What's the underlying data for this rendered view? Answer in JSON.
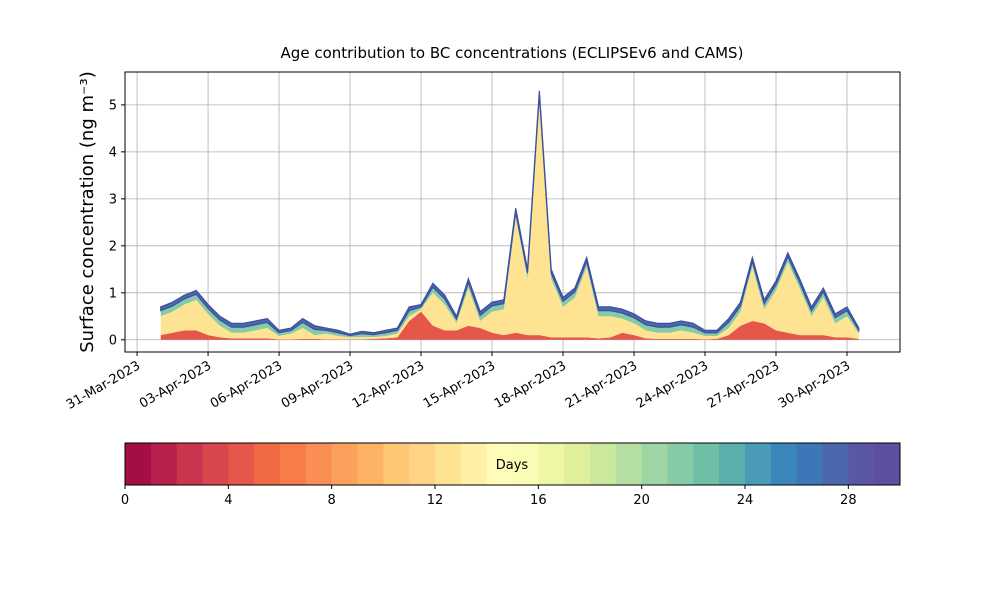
{
  "chart_data": {
    "type": "stackedarea",
    "title": "Age contribution to BC concentrations (ECLIPSEv6 and CAMS)",
    "ylabel": "Surface concentration (ng m⁻³)",
    "x": [
      1.0,
      1.5,
      2.0,
      2.5,
      3.0,
      3.5,
      4.0,
      4.5,
      5.0,
      5.5,
      6.0,
      6.5,
      7.0,
      7.5,
      8.0,
      8.5,
      9.0,
      9.5,
      10.0,
      10.5,
      11.0,
      11.5,
      12.0,
      12.5,
      13.0,
      13.5,
      14.0,
      14.5,
      15.0,
      15.5,
      16.0,
      16.5,
      17.0,
      17.5,
      18.0,
      18.5,
      19.0,
      19.5,
      20.0,
      20.5,
      21.0,
      21.5,
      22.0,
      22.5,
      23.0,
      23.5,
      24.0,
      24.5,
      25.0,
      25.5,
      26.0,
      26.5,
      27.0,
      27.5,
      28.0,
      28.5,
      29.0,
      29.5,
      30.0,
      30.5
    ],
    "series": [
      {
        "color": "#e55748",
        "values": [
          0.1,
          0.15,
          0.2,
          0.2,
          0.1,
          0.05,
          0.03,
          0.03,
          0.03,
          0.03,
          0.01,
          0.01,
          0.02,
          0.02,
          0.01,
          0.01,
          0.01,
          0.01,
          0.02,
          0.03,
          0.05,
          0.4,
          0.6,
          0.3,
          0.2,
          0.2,
          0.3,
          0.25,
          0.15,
          0.1,
          0.15,
          0.1,
          0.1,
          0.05,
          0.05,
          0.05,
          0.05,
          0.03,
          0.05,
          0.15,
          0.1,
          0.03,
          0.02,
          0.02,
          0.02,
          0.02,
          0.01,
          0.02,
          0.1,
          0.3,
          0.4,
          0.35,
          0.2,
          0.15,
          0.1,
          0.1,
          0.1,
          0.05,
          0.05,
          0.02
        ]
      },
      {
        "color": "#fee393",
        "values": [
          0.4,
          0.45,
          0.55,
          0.65,
          0.45,
          0.25,
          0.12,
          0.12,
          0.17,
          0.22,
          0.07,
          0.12,
          0.23,
          0.08,
          0.12,
          0.07,
          0.04,
          0.05,
          0.04,
          0.05,
          0.08,
          0.1,
          0.05,
          0.7,
          0.55,
          0.16,
          0.8,
          0.15,
          0.45,
          0.55,
          2.45,
          1.2,
          5.0,
          1.25,
          0.65,
          0.85,
          1.5,
          0.47,
          0.45,
          0.3,
          0.25,
          0.17,
          0.13,
          0.13,
          0.18,
          0.13,
          0.07,
          0.06,
          0.15,
          0.3,
          1.15,
          0.3,
          0.85,
          1.5,
          1.0,
          0.4,
          0.8,
          0.3,
          0.45,
          0.11
        ]
      },
      {
        "color": "#85cba5",
        "values": [
          0.12,
          0.12,
          0.12,
          0.12,
          0.12,
          0.12,
          0.12,
          0.12,
          0.12,
          0.12,
          0.07,
          0.07,
          0.12,
          0.12,
          0.07,
          0.07,
          0.04,
          0.07,
          0.05,
          0.07,
          0.07,
          0.12,
          0.05,
          0.12,
          0.12,
          0.08,
          0.12,
          0.12,
          0.12,
          0.12,
          0.12,
          0.12,
          0.12,
          0.12,
          0.12,
          0.12,
          0.12,
          0.12,
          0.12,
          0.12,
          0.12,
          0.12,
          0.12,
          0.12,
          0.12,
          0.12,
          0.07,
          0.07,
          0.12,
          0.12,
          0.12,
          0.12,
          0.12,
          0.12,
          0.12,
          0.12,
          0.12,
          0.12,
          0.12,
          0.07
        ]
      },
      {
        "color": "#4b67ad",
        "values": [
          0.08,
          0.08,
          0.08,
          0.08,
          0.08,
          0.08,
          0.08,
          0.08,
          0.08,
          0.08,
          0.05,
          0.05,
          0.08,
          0.08,
          0.05,
          0.05,
          0.03,
          0.05,
          0.04,
          0.05,
          0.05,
          0.08,
          0.05,
          0.08,
          0.08,
          0.06,
          0.08,
          0.08,
          0.08,
          0.08,
          0.08,
          0.08,
          0.08,
          0.08,
          0.08,
          0.08,
          0.08,
          0.08,
          0.08,
          0.08,
          0.08,
          0.08,
          0.08,
          0.08,
          0.08,
          0.08,
          0.05,
          0.05,
          0.08,
          0.08,
          0.08,
          0.08,
          0.08,
          0.08,
          0.08,
          0.08,
          0.08,
          0.08,
          0.08,
          0.05
        ]
      }
    ],
    "xlim": [
      -0.51,
      32.24
    ],
    "xticks": [
      {
        "value": 0,
        "label": "31-Mar-2023"
      },
      {
        "value": 3,
        "label": "03-Apr-2023"
      },
      {
        "value": 6,
        "label": "06-Apr-2023"
      },
      {
        "value": 9,
        "label": "09-Apr-2023"
      },
      {
        "value": 12,
        "label": "12-Apr-2023"
      },
      {
        "value": 15,
        "label": "15-Apr-2023"
      },
      {
        "value": 18,
        "label": "18-Apr-2023"
      },
      {
        "value": 21,
        "label": "21-Apr-2023"
      },
      {
        "value": 24,
        "label": "24-Apr-2023"
      },
      {
        "value": 27,
        "label": "27-Apr-2023"
      },
      {
        "value": 30,
        "label": "30-Apr-2023"
      }
    ],
    "ylim": [
      -0.26,
      5.7
    ],
    "yticks": [
      0,
      1,
      2,
      3,
      4,
      5
    ],
    "grid": true,
    "colorbar": {
      "label": "Days",
      "lim": [
        0,
        30
      ],
      "ticks": [
        0,
        4,
        8,
        12,
        16,
        20,
        24,
        28
      ],
      "colors": [
        "#a40d45",
        "#b8214b",
        "#cb344e",
        "#da464d",
        "#e55748",
        "#f06a44",
        "#f67d4a",
        "#f98f53",
        "#fca15d",
        "#fdb366",
        "#fec575",
        "#fed484",
        "#fee393",
        "#fff0a6",
        "#fffcb9",
        "#f8fcb4",
        "#eef8a4",
        "#dff09a",
        "#cbe99d",
        "#b5e0a2",
        "#9dd6a4",
        "#85cba5",
        "#6ebfa6",
        "#5aaeac",
        "#4a9bb5",
        "#3a87bc",
        "#3d77b7",
        "#4b67ad",
        "#5a57a4",
        "#5e4fa2"
      ]
    }
  }
}
